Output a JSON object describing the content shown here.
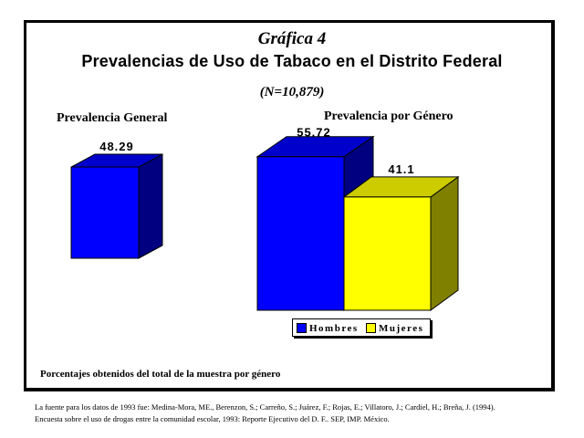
{
  "header": {
    "subtitle_num": "Gráfica 4",
    "title": "Prevalencias de Uso de Tabaco en el Distrito Federal",
    "sample_size": "(N=10,879)"
  },
  "panels": {
    "left_title": "Prevalencia General",
    "right_title": "Prevalencia por Género"
  },
  "legend": {
    "items": [
      {
        "label": "Hombres",
        "color": "#0000ff"
      },
      {
        "label": "Mujeres",
        "color": "#ffff00"
      }
    ]
  },
  "note": "Porcentajes obtenidos del total de la muestra por género",
  "source": {
    "line1": "La fuente para los datos de 1993 fue: Medina-Mora, ME., Berenzon, S.; Carreño, S.; Juárez, F.; Rojas, E.; Villatoro, J.; Cardiel, H.; Breña, J. (1994).",
    "line2": "Encuesta sobre el uso de drogas entre la comunidad escolar, 1993: Reporte Ejecutivo del D. F.. SEP, IMP. México."
  },
  "colors": {
    "blue": "#0000ff",
    "blue_top": "#0000cc",
    "blue_side": "#000080",
    "yellow": "#ffff00",
    "yellow_top": "#cccc00",
    "yellow_side": "#808000"
  },
  "chart_data": [
    {
      "type": "bar",
      "title": "Prevalencia General",
      "categories": [
        ""
      ],
      "values": [
        48.29
      ],
      "data_labels": [
        "48.29"
      ],
      "legend": "none",
      "grid": false
    },
    {
      "type": "bar",
      "title": "Prevalencia por Género",
      "categories": [
        "Hombres",
        "Mujeres"
      ],
      "values": [
        55.72,
        41.1
      ],
      "data_labels": [
        "55.72",
        "41.1"
      ],
      "legend": "bottom",
      "grid": false
    }
  ]
}
